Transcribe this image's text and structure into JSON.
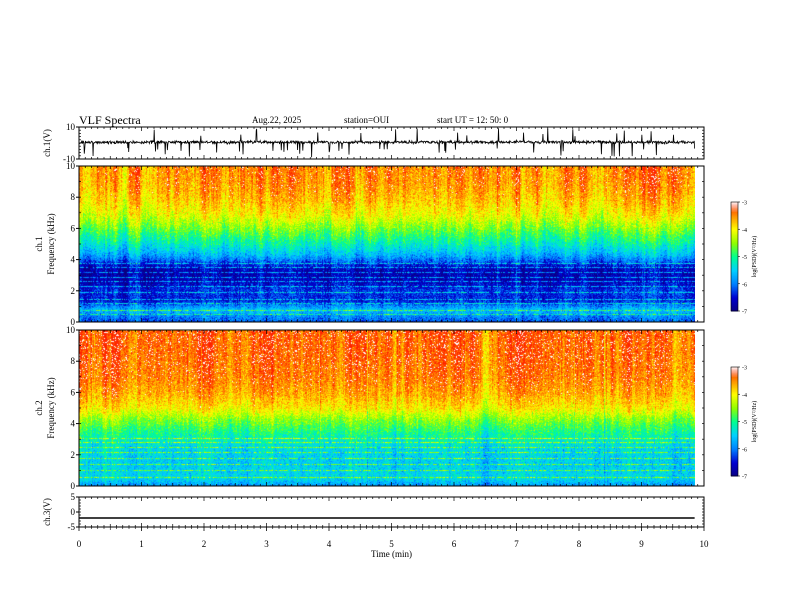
{
  "header": {
    "title": "VLF Spectra",
    "date": "Aug.22, 2025",
    "station": "station=OUI",
    "start_ut": "start  UT =   12: 50: 0"
  },
  "chart_data": [
    {
      "type": "line",
      "name": "ch1-waveform",
      "ylabel": "ch.1(V)",
      "ylim": [
        -10,
        10
      ],
      "yticks": [
        "10",
        "-10"
      ],
      "xlim": [
        0,
        10
      ],
      "baseline_offset_v": 0.5,
      "noise_amplitude_v": 1.5,
      "spike_amplitude_v": 9,
      "color": "#000000"
    },
    {
      "type": "heatmap",
      "name": "ch1-spectrogram",
      "ylabel": "Frequency (kHz)",
      "channel_label": "ch.1",
      "ylim": [
        0,
        10
      ],
      "yticks": [
        "0",
        "2",
        "4",
        "6",
        "8",
        "10"
      ],
      "xlim": [
        0,
        9.85
      ],
      "colorbar": {
        "label": "log(PSD)(V²/Hz)",
        "min": -7,
        "max": -3,
        "ticks": [
          "-3",
          "-4",
          "-5",
          "-6",
          "-7"
        ]
      },
      "profile": [
        [
          0,
          -6.2
        ],
        [
          0.3,
          -6.0
        ],
        [
          0.8,
          -5.6
        ],
        [
          1.4,
          -6.4
        ],
        [
          2.0,
          -6.3
        ],
        [
          2.6,
          -6.6
        ],
        [
          3.2,
          -6.7
        ],
        [
          3.6,
          -6.5
        ],
        [
          4.3,
          -5.7
        ],
        [
          5.0,
          -5.2
        ],
        [
          6.0,
          -4.6
        ],
        [
          6.8,
          -4.1
        ],
        [
          7.8,
          -3.75
        ],
        [
          8.8,
          -3.55
        ],
        [
          10.0,
          -3.45
        ]
      ],
      "lines_khz": [
        0.5,
        0.8,
        1.2,
        1.5,
        1.9,
        2.3,
        2.6,
        2.9,
        3.2,
        3.5,
        3.8
      ]
    },
    {
      "type": "heatmap",
      "name": "ch2-spectrogram",
      "ylabel": "Frequency (kHz)",
      "channel_label": "ch.2",
      "ylim": [
        0,
        10
      ],
      "yticks": [
        "0",
        "2",
        "4",
        "6",
        "8",
        "10"
      ],
      "xlim": [
        0,
        9.85
      ],
      "colorbar": {
        "label": "log(PSD)(V²/Hz)",
        "min": -7,
        "max": -3,
        "ticks": [
          "-3",
          "-4",
          "-5",
          "-6",
          "-7"
        ]
      },
      "profile": [
        [
          0,
          -5.9
        ],
        [
          0.5,
          -5.4
        ],
        [
          1.5,
          -5.5
        ],
        [
          2.5,
          -5.4
        ],
        [
          3.2,
          -5.1
        ],
        [
          3.6,
          -4.9
        ],
        [
          4.3,
          -4.5
        ],
        [
          5.0,
          -3.95
        ],
        [
          6.0,
          -3.6
        ],
        [
          7.0,
          -3.4
        ],
        [
          8.5,
          -3.3
        ],
        [
          10.0,
          -3.25
        ]
      ],
      "lines_khz": [
        0.6,
        1.0,
        1.4,
        1.8,
        2.2,
        2.5,
        2.8,
        3.1
      ]
    },
    {
      "type": "line",
      "name": "ch3-waveform",
      "ylabel": "ch.3(V)",
      "ylim": [
        -5,
        5
      ],
      "yticks": [
        "5",
        "0",
        "-5"
      ],
      "xlim": [
        0,
        10
      ],
      "values": [
        [
          0,
          -2.0
        ],
        [
          9.85,
          -2.0
        ]
      ],
      "color": "#000000"
    }
  ],
  "xaxis": {
    "label": "Time (min)",
    "ticks": [
      "0",
      "1",
      "2",
      "3",
      "4",
      "5",
      "6",
      "7",
      "8",
      "9",
      "10"
    ]
  },
  "colormap": [
    "#0a0080",
    "#0000d0",
    "#0080ff",
    "#00d0ff",
    "#00ff90",
    "#90ff00",
    "#ffff00",
    "#ff9000",
    "#ff2000",
    "#ffffff"
  ]
}
